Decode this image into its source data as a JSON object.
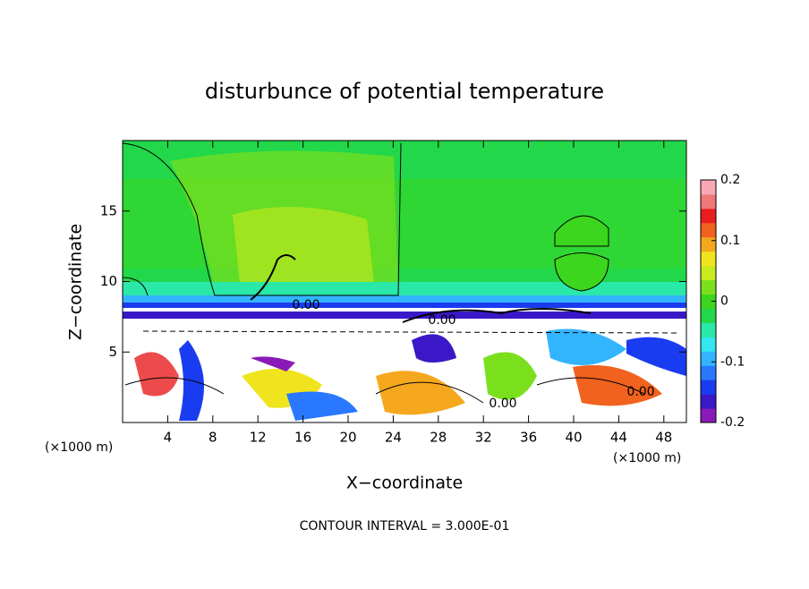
{
  "chart_data": {
    "type": "contour",
    "title": "disturbunce of potential temperature",
    "x_label": "X−coordinate",
    "y_label": "Z−coordinate",
    "x_unit_left": "(×1000 m)",
    "x_unit_right": "(×1000 m)",
    "footer": "CONTOUR INTERVAL = 3.000E-01",
    "xlim": [
      0,
      50
    ],
    "xticks": [
      4,
      8,
      12,
      16,
      20,
      24,
      28,
      32,
      36,
      40,
      44,
      48
    ],
    "ylim": [
      0,
      20
    ],
    "yticks": [
      5,
      10,
      15
    ],
    "contour_labels": [
      "0.00",
      "0.00",
      "0.00",
      "0.00"
    ],
    "colorbar": {
      "lim": [
        -0.2,
        0.2
      ],
      "ticks": [
        0.2,
        0.1,
        0,
        -0.1,
        -0.2
      ],
      "colors": [
        "#8a1ab8",
        "#3a18c8",
        "#1a3cf0",
        "#2a78ff",
        "#33b4ff",
        "#33e6f0",
        "#2ae8a8",
        "#22d84a",
        "#3cd61e",
        "#7ae01e",
        "#c8ea1e",
        "#f0e41e",
        "#f5a81e",
        "#f0621e",
        "#e81e1e",
        "#f07878",
        "#f8a8b4"
      ]
    }
  }
}
